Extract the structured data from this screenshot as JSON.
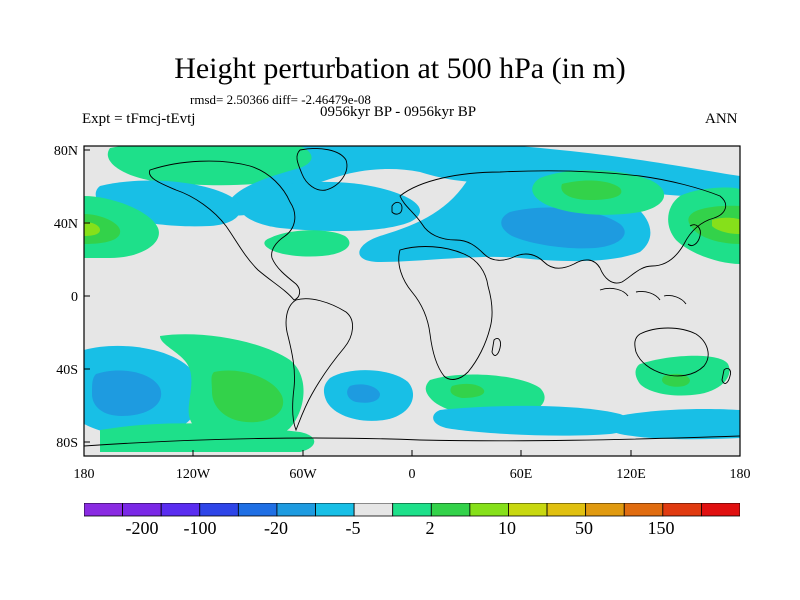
{
  "header": {
    "title": "Height perturbation at 500 hPa (in m)",
    "stats": "rmsd= 2.50366 diff= -2.46479e-08",
    "experiment": "Expt = tFmcj-tEvtj",
    "period": "0956kyr BP - 0956kyr BP",
    "season": "ANN"
  },
  "axes": {
    "lat_labels": [
      "80N",
      "40N",
      "0",
      "40S",
      "80S"
    ],
    "lon_labels": [
      "180",
      "120W",
      "60W",
      "0",
      "60E",
      "120E",
      "180"
    ]
  },
  "colorbar": {
    "labels": [
      "-200",
      "-100",
      "-20",
      "-5",
      "2",
      "10",
      "50",
      "150"
    ],
    "colors": [
      "#8a2be2",
      "#7a28e6",
      "#5a2df0",
      "#2e45e8",
      "#1f6fe4",
      "#1e9be0",
      "#18bfe6",
      "#e6e6e6",
      "#1ee08a",
      "#33d24a",
      "#86e01a",
      "#c8d810",
      "#e0c010",
      "#e09a10",
      "#e06c10",
      "#e03a10",
      "#e01010"
    ]
  },
  "colors": {
    "land_bg": "#e6e6e6",
    "light_blue": "#18bfe6",
    "mid_blue": "#1e9be0",
    "teal_green": "#1ee08a",
    "green": "#33d24a",
    "lime": "#86e01a"
  }
}
